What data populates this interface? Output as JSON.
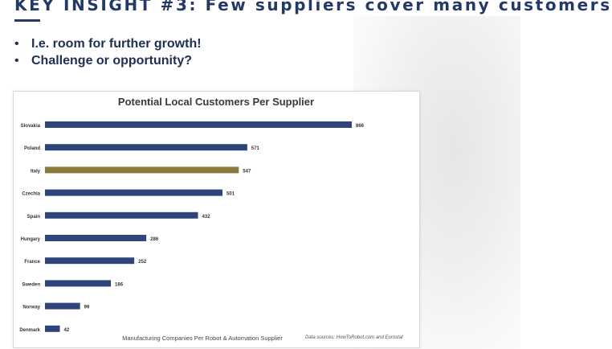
{
  "slide": {
    "title": "KEY INSIGHT #3: Few suppliers cover many customers",
    "bullet_marker": "•",
    "bullets": [
      "I.e. room for further growth!",
      "Challenge or opportunity?"
    ]
  },
  "chart_data": {
    "type": "bar",
    "orientation": "horizontal",
    "title": "Potential Local Customers Per Supplier",
    "xlabel": "Manufacturing Companies Per Robot & Automation Supplier",
    "source": "Data sources: HowToRobot.com and Eurostat",
    "categories": [
      "Slovakia",
      "Poland",
      "Italy",
      "Czechia",
      "Spain",
      "Hungary",
      "France",
      "Sweden",
      "Norway",
      "Denmark"
    ],
    "values": [
      866,
      571,
      547,
      501,
      432,
      286,
      252,
      186,
      99,
      42
    ],
    "highlight": "Italy",
    "colors": {
      "bar": "#2f4478",
      "highlight": "#8a7a3c"
    },
    "xlim": [
      0,
      900
    ],
    "grid": false,
    "legend": "none"
  }
}
